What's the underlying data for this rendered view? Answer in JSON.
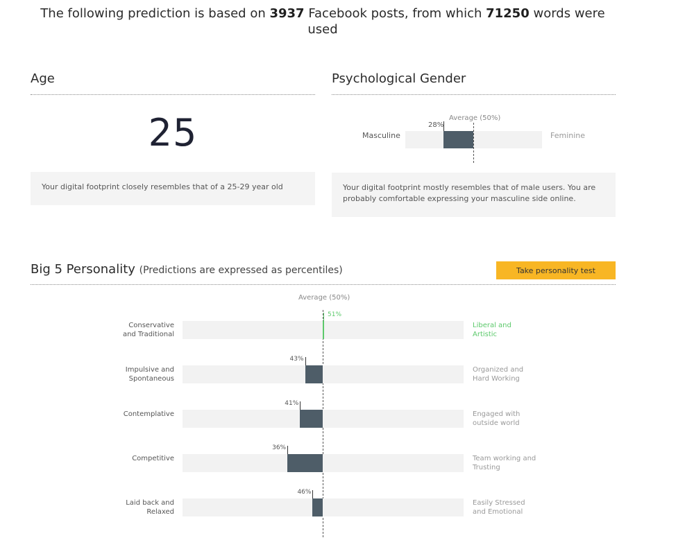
{
  "header": {
    "prefix": "The following prediction is based on",
    "posts": "3937",
    "middle": "Facebook posts, from which",
    "words": "71250",
    "suffix": "words were used"
  },
  "age": {
    "title": "Age",
    "value": "25",
    "note": "Your digital footprint closely resembles that of a 25-29 year old"
  },
  "gender": {
    "title": "Psychological Gender",
    "average_label": "Average (50%)",
    "left_label": "Masculine",
    "right_label": "Feminine",
    "value_label": "28%",
    "value": 28,
    "note": "Your digital footprint mostly resembles that of male users. You are probably comfortable expressing your masculine side online.",
    "colors": {
      "bar": "#4e5d68",
      "track": "#f2f2f2"
    }
  },
  "big5": {
    "title": "Big 5 Personality",
    "subtitle": "(Predictions are expressed as percentiles)",
    "button_label": "Take personality test",
    "average_label": "Average (50%)",
    "colors": {
      "bar": "#4e5d68",
      "highlight": "#5cc96b",
      "button": "#f8b624"
    },
    "traits": [
      {
        "left": [
          "Conservative",
          "and Traditional"
        ],
        "right": [
          "Liberal and",
          "Artistic"
        ],
        "value": 51,
        "value_label": "51%",
        "highlight": true
      },
      {
        "left": [
          "Impulsive and",
          "Spontaneous"
        ],
        "right": [
          "Organized and",
          "Hard Working"
        ],
        "value": 43,
        "value_label": "43%",
        "highlight": false
      },
      {
        "left": [
          "Contemplative"
        ],
        "right": [
          "Engaged with",
          "outside world"
        ],
        "value": 41,
        "value_label": "41%",
        "highlight": false
      },
      {
        "left": [
          "Competitive"
        ],
        "right": [
          "Team working and",
          "Trusting"
        ],
        "value": 36,
        "value_label": "36%",
        "highlight": false
      },
      {
        "left": [
          "Laid back and",
          "Relaxed"
        ],
        "right": [
          "Easily Stressed",
          "and Emotional"
        ],
        "value": 46,
        "value_label": "46%",
        "highlight": false
      }
    ]
  }
}
